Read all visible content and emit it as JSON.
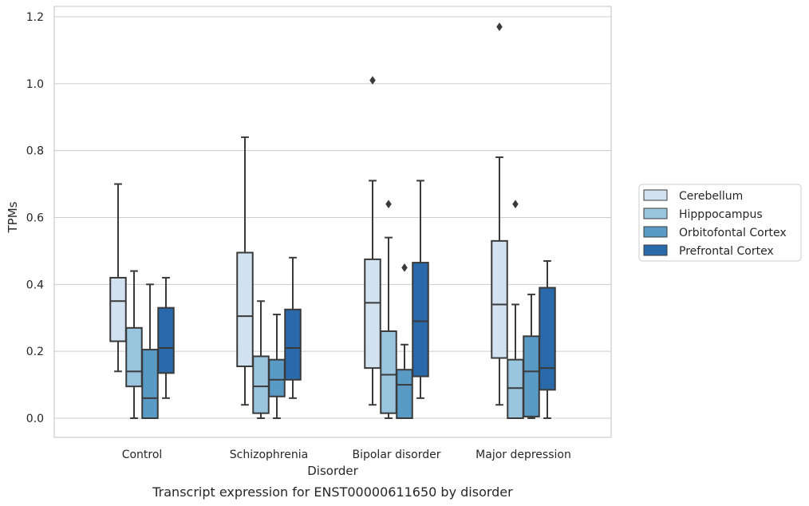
{
  "chart_data": {
    "type": "box",
    "caption": "Transcript expression for ENST00000611650 by disorder",
    "xlabel": "Disorder",
    "ylabel": "TPMs",
    "ylim": [
      -0.055,
      1.23
    ],
    "yticks": [
      "0.0",
      "0.2",
      "0.4",
      "0.6",
      "0.8",
      "1.0",
      "1.2"
    ],
    "grid": "horizontal",
    "legend_position": "right",
    "categories": [
      "Control",
      "Schizophrenia",
      "Bipolar disorder",
      "Major depression"
    ],
    "series": [
      {
        "name": "Cerebellum",
        "color": "#d3e2f1",
        "boxes": [
          {
            "whislo": 0.14,
            "q1": 0.23,
            "med": 0.35,
            "q3": 0.42,
            "whishi": 0.7,
            "fliers": []
          },
          {
            "whislo": 0.04,
            "q1": 0.155,
            "med": 0.305,
            "q3": 0.495,
            "whishi": 0.84,
            "fliers": []
          },
          {
            "whislo": 0.04,
            "q1": 0.15,
            "med": 0.345,
            "q3": 0.475,
            "whishi": 0.71,
            "fliers": [
              1.01
            ]
          },
          {
            "whislo": 0.04,
            "q1": 0.18,
            "med": 0.34,
            "q3": 0.53,
            "whishi": 0.78,
            "fliers": [
              1.17
            ]
          }
        ]
      },
      {
        "name": "Hipppocampus",
        "color": "#9ac5de",
        "boxes": [
          {
            "whislo": 0.0,
            "q1": 0.095,
            "med": 0.14,
            "q3": 0.27,
            "whishi": 0.44,
            "fliers": []
          },
          {
            "whislo": 0.0,
            "q1": 0.015,
            "med": 0.095,
            "q3": 0.185,
            "whishi": 0.35,
            "fliers": []
          },
          {
            "whislo": 0.0,
            "q1": 0.015,
            "med": 0.13,
            "q3": 0.26,
            "whishi": 0.54,
            "fliers": [
              0.64
            ]
          },
          {
            "whislo": 0.0,
            "q1": 0.0,
            "med": 0.09,
            "q3": 0.175,
            "whishi": 0.34,
            "fliers": [
              0.64
            ]
          }
        ]
      },
      {
        "name": "Orbitofontal Cortex",
        "color": "#5a9bc6",
        "boxes": [
          {
            "whislo": 0.0,
            "q1": 0.0,
            "med": 0.06,
            "q3": 0.205,
            "whishi": 0.4,
            "fliers": []
          },
          {
            "whislo": 0.0,
            "q1": 0.065,
            "med": 0.115,
            "q3": 0.175,
            "whishi": 0.31,
            "fliers": []
          },
          {
            "whislo": 0.0,
            "q1": 0.0,
            "med": 0.1,
            "q3": 0.145,
            "whishi": 0.22,
            "fliers": [
              0.45
            ]
          },
          {
            "whislo": 0.0,
            "q1": 0.005,
            "med": 0.14,
            "q3": 0.245,
            "whishi": 0.37,
            "fliers": []
          }
        ]
      },
      {
        "name": "Prefrontal Cortex",
        "color": "#2b6aaa",
        "boxes": [
          {
            "whislo": 0.06,
            "q1": 0.135,
            "med": 0.21,
            "q3": 0.33,
            "whishi": 0.42,
            "fliers": []
          },
          {
            "whislo": 0.06,
            "q1": 0.115,
            "med": 0.21,
            "q3": 0.325,
            "whishi": 0.48,
            "fliers": []
          },
          {
            "whislo": 0.06,
            "q1": 0.125,
            "med": 0.29,
            "q3": 0.465,
            "whishi": 0.71,
            "fliers": []
          },
          {
            "whislo": 0.0,
            "q1": 0.085,
            "med": 0.15,
            "q3": 0.39,
            "whishi": 0.47,
            "fliers": []
          }
        ]
      }
    ]
  }
}
